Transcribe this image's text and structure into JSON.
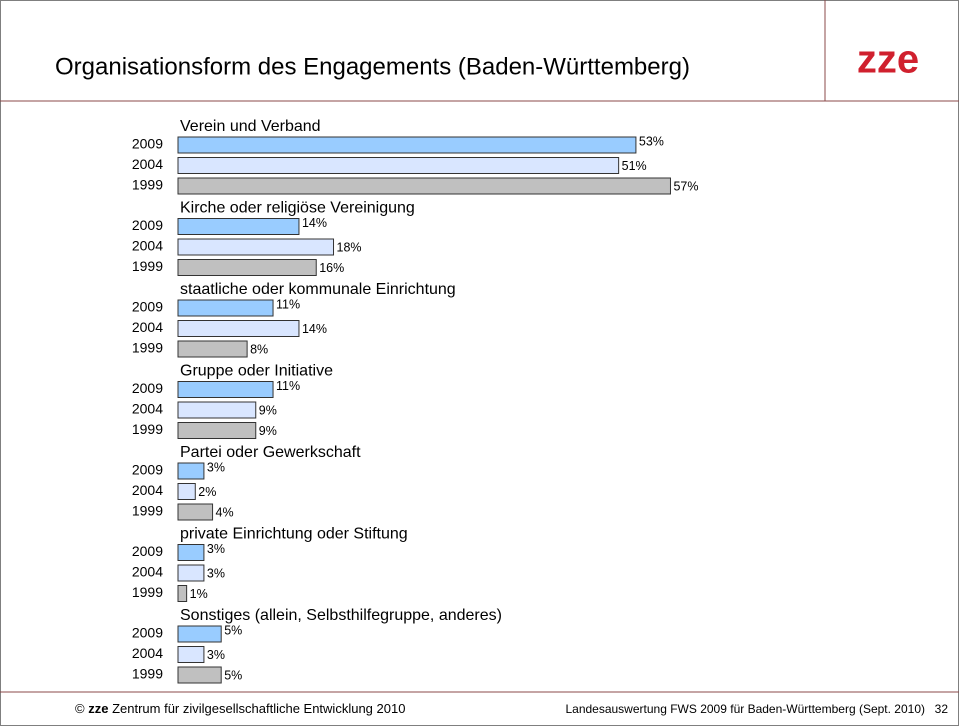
{
  "header": {
    "title": "Organisationsform des Engagements (Baden-Württemberg)",
    "logo": "zze"
  },
  "chart_data": {
    "type": "bar",
    "orientation": "horizontal",
    "categories": [
      "Verein und Verband",
      "Kirche oder religiöse Vereinigung",
      "staatliche oder kommunale Einrichtung",
      "Gruppe oder Initiative",
      "Partei oder Gewerkschaft",
      "private Einrichtung oder Stiftung",
      "Sonstiges (allein, Selbsthilfegruppe, anderes)"
    ],
    "series": [
      {
        "name": "2009",
        "color": "#99ccff",
        "values": [
          53,
          14,
          11,
          11,
          3,
          3,
          5
        ],
        "value_labels": [
          "53%",
          "14%",
          "11%",
          "11%",
          "3%",
          "3%",
          "5%"
        ]
      },
      {
        "name": "2004",
        "color": "#d9e6ff",
        "values": [
          51,
          18,
          14,
          9,
          2,
          3,
          3
        ],
        "value_labels": [
          "51%",
          "18%",
          "14%",
          "9%",
          "2%",
          "3%",
          "3%"
        ]
      },
      {
        "name": "1999",
        "color": "#c0c0c0",
        "values": [
          57,
          16,
          8,
          9,
          4,
          1,
          5
        ],
        "value_labels": [
          "57%",
          "16%",
          "8%",
          "9%",
          "4%",
          "1%",
          "5%"
        ]
      }
    ]
  },
  "footer": {
    "copyright": "©",
    "brand": "zze",
    "left": "Zentrum für zivilgesellschaftliche Entwicklung 2010",
    "right": "Landesauswertung FWS 2009 für Baden-Württemberg (Sept. 2010)",
    "page": "32"
  }
}
